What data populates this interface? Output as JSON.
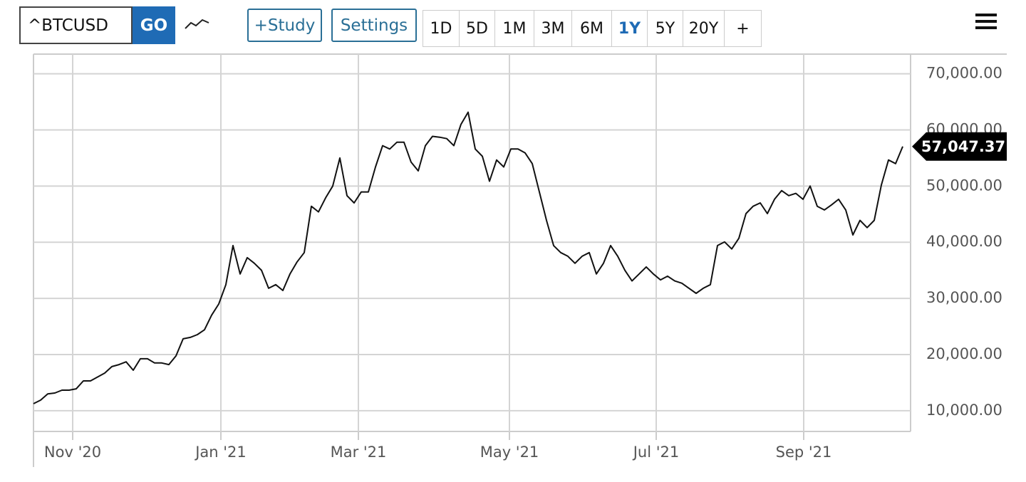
{
  "toolbar": {
    "symbol": "^BTCUSD",
    "go": "GO",
    "study": "+Study",
    "settings": "Settings",
    "periods": [
      "1D",
      "5D",
      "1M",
      "3M",
      "6M",
      "1Y",
      "5Y",
      "20Y",
      "+"
    ],
    "selected_period": 5
  },
  "chart_data": {
    "type": "line",
    "color": "#111111",
    "values": [
      11240,
      11880,
      13000,
      13150,
      13650,
      13650,
      13900,
      15300,
      15300,
      16000,
      16700,
      17850,
      18200,
      18700,
      17200,
      19250,
      19250,
      18500,
      18500,
      18200,
      19750,
      22800,
      23050,
      23550,
      24400,
      27000,
      29000,
      32450,
      39400,
      34350,
      37250,
      36250,
      35000,
      31800,
      32450,
      31400,
      34350,
      36500,
      38150,
      46400,
      45400,
      47900,
      50000,
      55000,
      48300,
      47000,
      48950,
      48950,
      53400,
      57200,
      56600,
      57800,
      57800,
      54250,
      52700,
      57200,
      58850,
      58700,
      58450,
      57200,
      61000,
      63150,
      56600,
      55300,
      50850,
      54650,
      53400,
      56600,
      56600,
      55900,
      54000,
      48950,
      43900,
      39400,
      38150,
      37500,
      36250,
      37500,
      38150,
      34350,
      36250,
      39400,
      37500,
      35000,
      33100,
      34350,
      35600,
      34350,
      33300,
      33950,
      33100,
      32700,
      31800,
      30900,
      31800,
      32450,
      39400,
      40050,
      38800,
      40700,
      45100,
      46400,
      47000,
      45100,
      47650,
      49200,
      48300,
      48700,
      47650,
      50000,
      46400,
      45750,
      46650,
      47650,
      45750,
      41300,
      43900,
      42600,
      43900,
      50200,
      54650,
      54000,
      57047.37
    ],
    "current_price": {
      "value": 57047.37,
      "label": "57,047.37"
    },
    "xlim": [
      0,
      123.1
    ],
    "xticks": [
      {
        "value": 5.5,
        "label": "Nov '20"
      },
      {
        "value": 26.3,
        "label": "Jan '21"
      },
      {
        "value": 45.6,
        "label": "Mar '21"
      },
      {
        "value": 66.8,
        "label": "May '21"
      },
      {
        "value": 87.4,
        "label": "Jul '21"
      },
      {
        "value": 108.1,
        "label": "Sep '21"
      }
    ],
    "ylim": [
      6300,
      73500
    ],
    "yticks": [
      {
        "value": 10000,
        "label": "10,000.00"
      },
      {
        "value": 20000,
        "label": "20,000.00"
      },
      {
        "value": 30000,
        "label": "30,000.00"
      },
      {
        "value": 40000,
        "label": "40,000.00"
      },
      {
        "value": 50000,
        "label": "50,000.00"
      },
      {
        "value": 60000,
        "label": "60,000.00"
      },
      {
        "value": 70000,
        "label": "70,000.00"
      }
    ],
    "grid": true
  }
}
